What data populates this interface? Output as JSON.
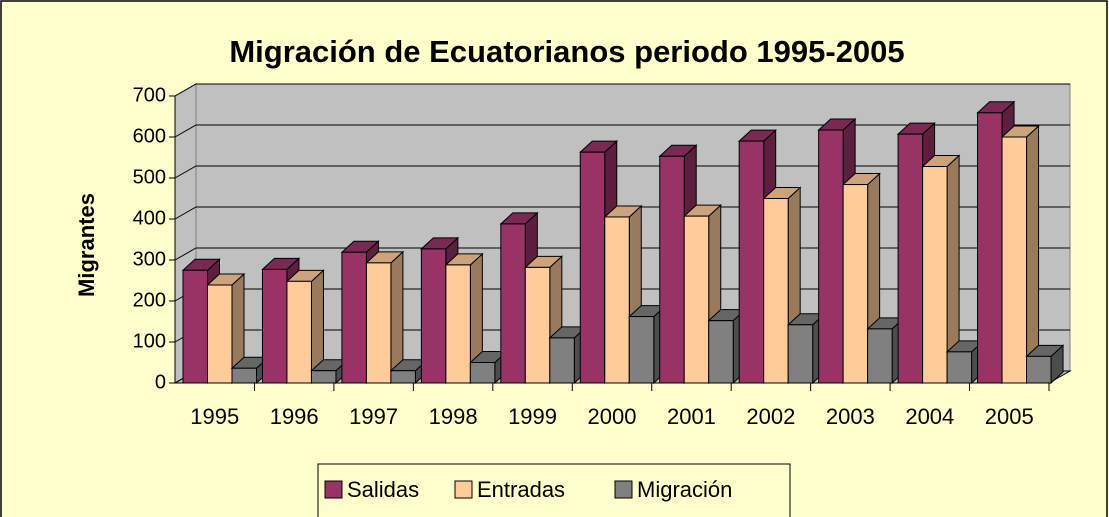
{
  "chart_data": {
    "type": "bar3d",
    "title": "Migración de Ecuatorianos  periodo 1995-2005",
    "y_label": "Migrantes",
    "categories": [
      "1995",
      "1996",
      "1997",
      "1998",
      "1999",
      "2000",
      "2001",
      "2002",
      "2003",
      "2004",
      "2005"
    ],
    "series": [
      {
        "name": "Salidas",
        "color": "#993366",
        "values": [
          275,
          277,
          319,
          327,
          388,
          563,
          553,
          590,
          617,
          607,
          659
        ]
      },
      {
        "name": "Entradas",
        "color": "#ffcc99",
        "values": [
          239,
          248,
          293,
          288,
          282,
          405,
          407,
          450,
          484,
          528,
          600
        ]
      },
      {
        "name": "Migración",
        "color": "#808080",
        "values": [
          36,
          30,
          30,
          50,
          110,
          162,
          152,
          142,
          132,
          76,
          65
        ]
      }
    ],
    "ylim": [
      0,
      700
    ],
    "yticks": [
      0,
      100,
      200,
      300,
      400,
      500,
      600,
      700
    ],
    "grid": true,
    "legend": "bottom"
  }
}
